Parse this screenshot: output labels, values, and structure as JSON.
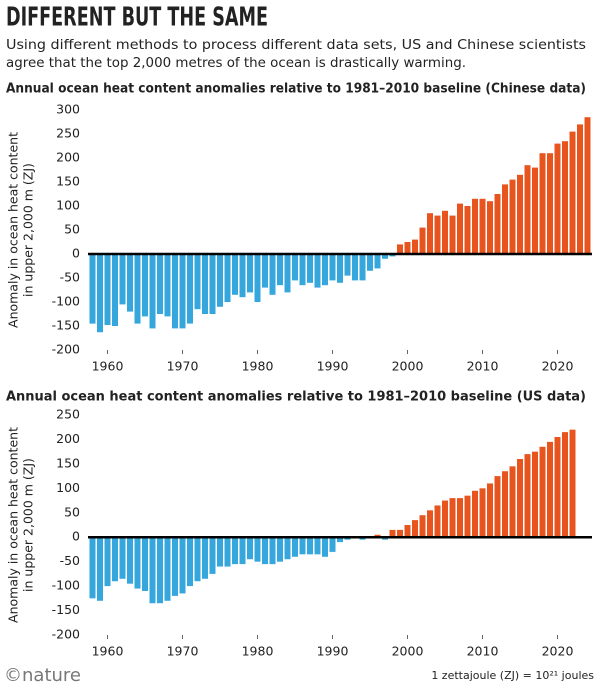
{
  "title": "DIFFERENT BUT THE SAME",
  "subtitle": [
    "Using different methods to process different data sets, US and Chinese scientists",
    "agree that the top 2,000 metres of the ocean is drastically warming."
  ],
  "footer": {
    "logo": "©nature",
    "note": "1 zettajoule (ZJ) = 10²¹ joules"
  },
  "chart_data": [
    {
      "type": "bar",
      "title": "Annual ocean heat content anomalies relative to 1981–2010 baseline (Chinese data)",
      "y_label": [
        "Anomaly in ocean heat content",
        "in upper 2,000 m (ZJ)"
      ],
      "colors": {
        "positive": "#e8541e",
        "negative": "#35a7dc"
      },
      "x": [
        1958,
        1959,
        1960,
        1961,
        1962,
        1963,
        1964,
        1965,
        1966,
        1967,
        1968,
        1969,
        1970,
        1971,
        1972,
        1973,
        1974,
        1975,
        1976,
        1977,
        1978,
        1979,
        1980,
        1981,
        1982,
        1983,
        1984,
        1985,
        1986,
        1987,
        1988,
        1989,
        1990,
        1991,
        1992,
        1993,
        1994,
        1995,
        1996,
        1997,
        1998,
        1999,
        2000,
        2001,
        2002,
        2003,
        2004,
        2005,
        2006,
        2007,
        2008,
        2009,
        2010,
        2011,
        2012,
        2013,
        2014,
        2015,
        2016,
        2017,
        2018,
        2019,
        2020,
        2021,
        2022,
        2023,
        2024
      ],
      "values": [
        -145,
        -163,
        -148,
        -150,
        -105,
        -120,
        -145,
        -130,
        -155,
        -125,
        -130,
        -155,
        -155,
        -145,
        -115,
        -125,
        -125,
        -110,
        -100,
        -85,
        -90,
        -80,
        -100,
        -70,
        -85,
        -65,
        -80,
        -55,
        -65,
        -60,
        -70,
        -65,
        -55,
        -60,
        -45,
        -55,
        -55,
        -35,
        -30,
        -10,
        -5,
        20,
        25,
        30,
        55,
        85,
        80,
        90,
        80,
        105,
        100,
        115,
        115,
        110,
        125,
        145,
        155,
        165,
        185,
        180,
        210,
        210,
        230,
        235,
        255,
        270,
        285
      ],
      "xlim": [
        1957.4,
        2024.6
      ],
      "xticks": [
        1960,
        1970,
        1980,
        1990,
        2000,
        2010,
        2020
      ],
      "ylim": [
        -200,
        300
      ],
      "yticks": [
        -200,
        -150,
        -100,
        -50,
        0,
        50,
        100,
        150,
        200,
        250,
        300
      ]
    },
    {
      "type": "bar",
      "title": "Annual ocean heat content anomalies relative to 1981–2010 baseline (US data)",
      "y_label": [
        "Anomaly in ocean heat content",
        "in upper 2,000 m (ZJ)"
      ],
      "colors": {
        "positive": "#e8541e",
        "negative": "#35a7dc"
      },
      "x": [
        1958,
        1959,
        1960,
        1961,
        1962,
        1963,
        1964,
        1965,
        1966,
        1967,
        1968,
        1969,
        1970,
        1971,
        1972,
        1973,
        1974,
        1975,
        1976,
        1977,
        1978,
        1979,
        1980,
        1981,
        1982,
        1983,
        1984,
        1985,
        1986,
        1987,
        1988,
        1989,
        1990,
        1991,
        1992,
        1993,
        1994,
        1995,
        1996,
        1997,
        1998,
        1999,
        2000,
        2001,
        2002,
        2003,
        2004,
        2005,
        2006,
        2007,
        2008,
        2009,
        2010,
        2011,
        2012,
        2013,
        2014,
        2015,
        2016,
        2017,
        2018,
        2019,
        2020,
        2021,
        2022
      ],
      "values": [
        -125,
        -130,
        -100,
        -90,
        -85,
        -95,
        -105,
        -110,
        -135,
        -135,
        -130,
        -120,
        -115,
        -100,
        -90,
        -85,
        -75,
        -60,
        -60,
        -55,
        -55,
        -45,
        -50,
        -55,
        -55,
        -50,
        -45,
        -40,
        -35,
        -35,
        -35,
        -40,
        -30,
        -10,
        -5,
        0,
        -5,
        0,
        5,
        -5,
        15,
        15,
        25,
        35,
        45,
        55,
        65,
        75,
        80,
        80,
        85,
        95,
        100,
        110,
        125,
        135,
        145,
        160,
        170,
        175,
        185,
        195,
        205,
        215,
        220
      ],
      "xlim": [
        1957.4,
        2024.6
      ],
      "xticks": [
        1960,
        1970,
        1980,
        1990,
        2000,
        2010,
        2020
      ],
      "ylim": [
        -200,
        250
      ],
      "yticks": [
        -200,
        -150,
        -100,
        -50,
        0,
        50,
        100,
        150,
        200,
        250
      ]
    }
  ]
}
